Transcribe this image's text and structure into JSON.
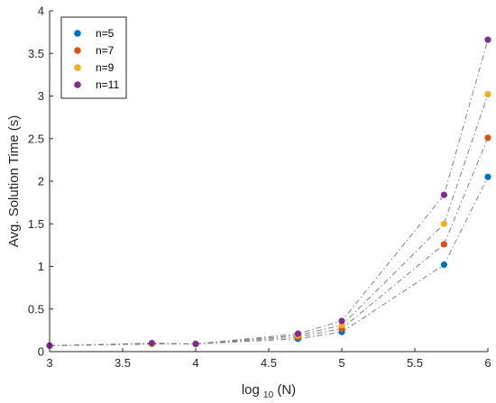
{
  "chart_data": {
    "type": "scatter",
    "title": "",
    "xlabel_main": "log",
    "xlabel_sub": "10",
    "xlabel_tail": "(N)",
    "ylabel": "Avg. Solution Time (s)",
    "xlim": [
      3,
      6
    ],
    "ylim": [
      0,
      4
    ],
    "xticks": [
      "3",
      "3.5",
      "4",
      "4.5",
      "5",
      "5.5",
      "6"
    ],
    "yticks": [
      "0",
      "0.5",
      "1",
      "1.5",
      "2",
      "2.5",
      "3",
      "3.5",
      "4"
    ],
    "grid": false,
    "legend_position": "top-left",
    "connector_style": "dash-dot",
    "connector_color": "#7f7f7f",
    "x": [
      3,
      3.7,
      4,
      4.7,
      5,
      5.7,
      6
    ],
    "series": [
      {
        "name": "n=5",
        "color": "#0072BD",
        "values": [
          0.07,
          0.09,
          0.09,
          0.15,
          0.23,
          1.02,
          2.05
        ]
      },
      {
        "name": "n=7",
        "color": "#D95319",
        "values": [
          0.07,
          0.09,
          0.09,
          0.17,
          0.27,
          1.26,
          2.51
        ]
      },
      {
        "name": "n=9",
        "color": "#EDB120",
        "values": [
          0.07,
          0.09,
          0.09,
          0.19,
          0.31,
          1.5,
          3.02
        ]
      },
      {
        "name": "n=11",
        "color": "#7E2F8E",
        "values": [
          0.07,
          0.1,
          0.09,
          0.21,
          0.36,
          1.84,
          3.66
        ]
      }
    ]
  }
}
